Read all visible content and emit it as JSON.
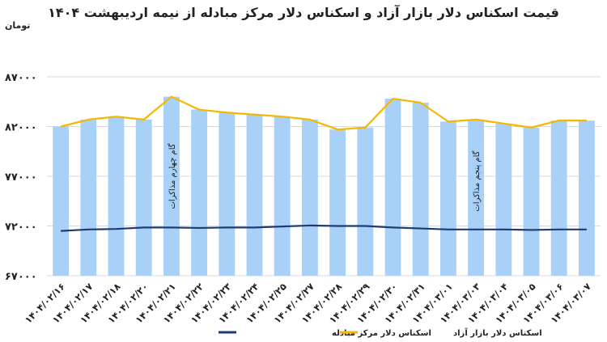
{
  "chart_data": {
    "type": "bar+line",
    "title": "قیمت اسکناس دلار بازار آزاد و اسکناس دلار مرکز مبادله از نیمه اردیبهشت ۱۴۰۴",
    "unit_label": "تومان",
    "categories": [
      "۱۴۰۴/۰۲/۱۶",
      "۱۴۰۴/۰۲/۱۷",
      "۱۴۰۴/۰۲/۱۸",
      "۱۴۰۴/۰۲/۲۰",
      "۱۴۰۴/۰۲/۲۱",
      "۱۴۰۴/۰۲/۲۲",
      "۱۴۰۴/۰۲/۲۳",
      "۱۴۰۴/۰۲/۲۴",
      "۱۴۰۴/۰۲/۲۵",
      "۱۴۰۴/۰۲/۲۷",
      "۱۴۰۴/۰۲/۲۸",
      "۱۴۰۴/۰۲/۲۹",
      "۱۴۰۴/۰۲/۳۰",
      "۱۴۰۴/۰۲/۳۱",
      "۱۴۰۴/۰۳/۰۱",
      "۱۴۰۴/۰۳/۰۳",
      "۱۴۰۴/۰۳/۰۴",
      "۱۴۰۴/۰۳/۰۵",
      "۱۴۰۴/۰۳/۰۶",
      "۱۴۰۴/۰۳/۰۷"
    ],
    "series": [
      {
        "name": "اسکناس دلار بازار آزاد",
        "color": "#f5b800",
        "values": [
          82000,
          82700,
          83000,
          82700,
          85000,
          83700,
          83400,
          83200,
          83000,
          82700,
          81700,
          81900,
          84800,
          84400,
          82500,
          82700,
          82300,
          81900,
          82600,
          82600
        ]
      },
      {
        "name": "اسکناس دلار مرکز مبادله",
        "color": "#1f3b73",
        "values": [
          71500,
          71650,
          71700,
          71850,
          71850,
          71800,
          71850,
          71850,
          71950,
          72050,
          72000,
          72000,
          71850,
          71750,
          71650,
          71650,
          71650,
          71600,
          71650,
          71650
        ]
      }
    ],
    "bar_color": "#a9d1f7",
    "bar_values_from_series": "اسکناس دلار بازار آزاد",
    "ylim": [
      67000,
      87000
    ],
    "y_ticks": [
      67000,
      72000,
      77000,
      82000,
      87000
    ],
    "y_tick_labels": [
      "۶۷۰۰۰",
      "۷۲۰۰۰",
      "۷۷۰۰۰",
      "۸۲۰۰۰",
      "۸۷۰۰۰"
    ],
    "gridlines": true,
    "legend_position": "bottom",
    "annotations": [
      {
        "text": "گام چهارم مذاکرات",
        "category_index": 4,
        "y": 77000
      },
      {
        "text": "گام پنجم مذاکرات",
        "category_index": 15,
        "y": 76500
      }
    ]
  }
}
